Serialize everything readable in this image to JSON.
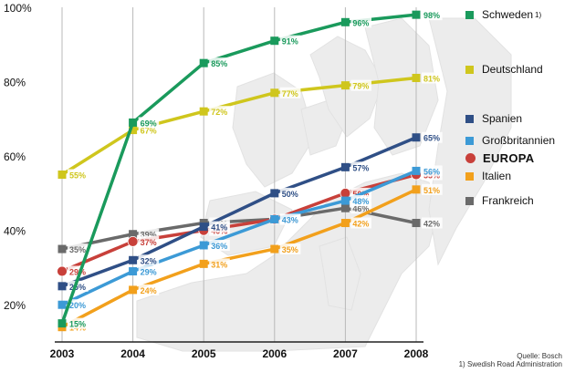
{
  "chart_data": {
    "type": "line",
    "x": [
      "2003",
      "2004",
      "2005",
      "2006",
      "2007",
      "2008"
    ],
    "ylim": [
      10,
      100
    ],
    "yticks": [
      "20%",
      "40%",
      "60%",
      "80%",
      "100%"
    ],
    "grid": "vertical",
    "legend": "right",
    "series": [
      {
        "name": "Schweden",
        "marker": "square",
        "color": "#1a9a5c",
        "values": [
          15,
          69,
          85,
          91,
          96,
          98
        ],
        "labels": [
          "15%",
          "69%",
          "85%",
          "91%",
          "96%",
          "98%"
        ]
      },
      {
        "name": "Deutschland",
        "marker": "square",
        "color": "#cfc61d",
        "values": [
          55,
          67,
          72,
          77,
          79,
          81
        ],
        "labels": [
          "55%",
          "67%",
          "72%",
          "77%",
          "79%",
          "81%"
        ]
      },
      {
        "name": "Spanien",
        "marker": "square",
        "color": "#2f4f86",
        "values": [
          25,
          32,
          41,
          50,
          57,
          65
        ],
        "labels": [
          "25%",
          "32%",
          "41%",
          "50%",
          "57%",
          "65%"
        ]
      },
      {
        "name": "Großbritannien",
        "marker": "square",
        "color": "#3c9ad6",
        "values": [
          20,
          29,
          36,
          43,
          48,
          56
        ],
        "labels": [
          "20%",
          "29%",
          "36%",
          "43%",
          "48%",
          "56%"
        ]
      },
      {
        "name": "EUROPA",
        "marker": "circle",
        "color": "#c8403a",
        "values": [
          29,
          37,
          40,
          43,
          50,
          55
        ],
        "labels": [
          "29%",
          "37%",
          "40%",
          "43%",
          "50%",
          "55%"
        ]
      },
      {
        "name": "Italien",
        "marker": "square",
        "color": "#f2a01c",
        "values": [
          14,
          24,
          31,
          35,
          42,
          51
        ],
        "labels": [
          "14%",
          "24%",
          "31%",
          "35%",
          "42%",
          "51%"
        ]
      },
      {
        "name": "Frankreich",
        "marker": "square",
        "color": "#6a6a6a",
        "values": [
          35,
          39,
          42,
          43,
          46,
          42
        ],
        "labels": [
          "35%",
          "39%",
          "42%",
          "43%",
          "46%",
          "42%"
        ]
      }
    ],
    "footnote_marker": "1)"
  },
  "source": {
    "line1": "Quelle: Bosch",
    "line2": "1) Swedish Road Administration"
  }
}
